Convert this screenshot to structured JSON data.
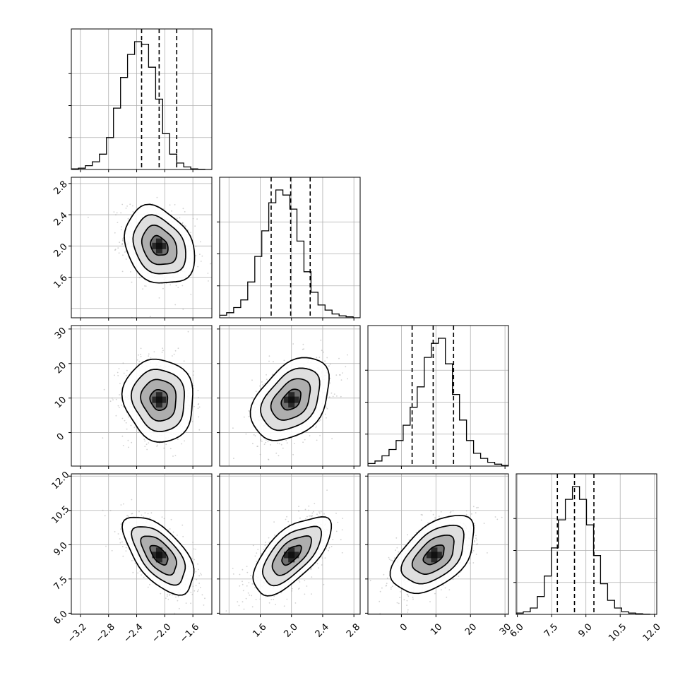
{
  "chart_data": {
    "type": "corner",
    "colors": {
      "line": "#000000",
      "grid": "#b0b0b0",
      "points": "#9a9a9a"
    },
    "parameters": [
      {
        "id": "p0",
        "range": [
          -3.33,
          -1.33
        ],
        "ticks": [
          -3.2,
          -2.8,
          -2.4,
          -2.0,
          -1.6
        ],
        "tick_labels": [
          "−3.2",
          "−2.8",
          "−2.4",
          "−2.0",
          "−1.6"
        ],
        "grid": [
          -3.2,
          -2.8,
          -2.4,
          -2.0,
          -1.6
        ],
        "quantiles": [
          -2.33,
          -2.08,
          -1.83
        ],
        "hist": {
          "edges_start": -3.33,
          "edges_step": 0.1,
          "counts": [
            0.005,
            0.01,
            0.03,
            0.06,
            0.12,
            0.25,
            0.48,
            0.72,
            0.9,
            1.0,
            0.98,
            0.8,
            0.55,
            0.28,
            0.12,
            0.05,
            0.02,
            0.005,
            0.002,
            0.0
          ]
        }
      },
      {
        "id": "p1",
        "range": [
          1.08,
          2.88
        ],
        "ticks": [
          1.6,
          2.0,
          2.4,
          2.8
        ],
        "tick_labels": [
          "1.6",
          "2.0",
          "2.4",
          "2.8"
        ],
        "grid": [
          1.2,
          1.6,
          2.0,
          2.4,
          2.8
        ],
        "quantiles": [
          1.74,
          1.99,
          2.24
        ],
        "hist": {
          "edges_start": 1.08,
          "edges_step": 0.09,
          "counts": [
            0.02,
            0.04,
            0.08,
            0.14,
            0.28,
            0.48,
            0.68,
            0.9,
            1.0,
            0.96,
            0.85,
            0.6,
            0.36,
            0.2,
            0.1,
            0.06,
            0.03,
            0.015,
            0.008,
            0.0
          ]
        }
      },
      {
        "id": "p2",
        "range": [
          -9.7,
          31.0
        ],
        "ticks": [
          0,
          10,
          20,
          30
        ],
        "tick_labels": [
          "0",
          "10",
          "20",
          "30"
        ],
        "grid": [
          0,
          10,
          20,
          30
        ],
        "quantiles": [
          3.1,
          9.2,
          15.1
        ],
        "hist": {
          "edges_start": -9.7,
          "edges_step": 2.04,
          "counts": [
            0.02,
            0.04,
            0.08,
            0.13,
            0.2,
            0.32,
            0.46,
            0.62,
            0.85,
            0.96,
            1.0,
            0.8,
            0.56,
            0.36,
            0.2,
            0.1,
            0.06,
            0.03,
            0.015,
            0.005
          ]
        }
      },
      {
        "id": "p3",
        "range": [
          5.95,
          12.1
        ],
        "ticks": [
          6.0,
          7.5,
          9.0,
          10.5,
          12.0
        ],
        "tick_labels": [
          "6.0",
          "7.5",
          "9.0",
          "10.5",
          "12.0"
        ],
        "grid": [
          6.0,
          7.5,
          9.0,
          10.5,
          12.0
        ],
        "quantiles": [
          7.75,
          8.5,
          9.35
        ],
        "hist": {
          "edges_start": 5.95,
          "edges_step": 0.3075,
          "counts": [
            0.01,
            0.02,
            0.05,
            0.14,
            0.3,
            0.52,
            0.74,
            0.9,
            1.0,
            0.9,
            0.7,
            0.46,
            0.24,
            0.11,
            0.05,
            0.02,
            0.01,
            0.005,
            0.002,
            0.0
          ]
        }
      }
    ],
    "pairs": [
      {
        "row": 1,
        "col": 0,
        "mean": [
          -2.08,
          2.0
        ],
        "sd": [
          0.25,
          0.25
        ],
        "corr": -0.25
      },
      {
        "row": 2,
        "col": 0,
        "mean": [
          -2.08,
          9.5
        ],
        "sd": [
          0.25,
          6.0
        ],
        "corr": -0.08
      },
      {
        "row": 2,
        "col": 1,
        "mean": [
          2.0,
          9.5
        ],
        "sd": [
          0.25,
          6.0
        ],
        "corr": 0.38
      },
      {
        "row": 3,
        "col": 0,
        "mean": [
          -2.08,
          8.55
        ],
        "sd": [
          0.25,
          0.85
        ],
        "corr": -0.6
      },
      {
        "row": 3,
        "col": 1,
        "mean": [
          2.0,
          8.55
        ],
        "sd": [
          0.25,
          0.85
        ],
        "corr": 0.65
      },
      {
        "row": 3,
        "col": 2,
        "mean": [
          9.5,
          8.55
        ],
        "sd": [
          6.0,
          0.85
        ],
        "corr": 0.5
      }
    ],
    "contour_levels_sigma": [
      0.5,
      1.0,
      1.5,
      2.0
    ]
  }
}
